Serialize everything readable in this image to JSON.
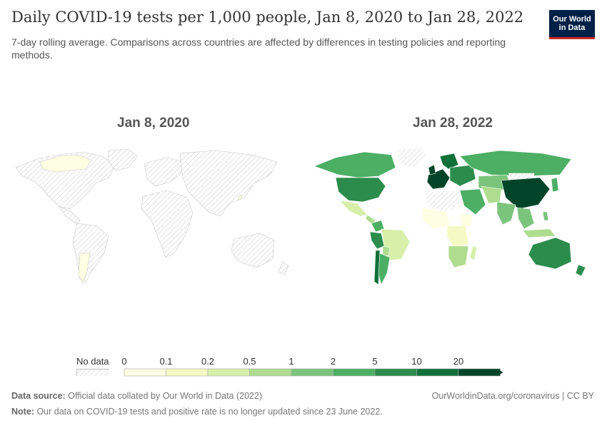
{
  "title": "Daily COVID-19 tests per 1,000 people, Jan 8, 2020 to Jan 28, 2022",
  "subtitle": "7-day rolling average. Comparisons across countries are affected by differences in testing policies and reporting methods.",
  "logo": {
    "line1": "Our World",
    "line2": "in Data",
    "bg_color": "#002147",
    "accent_color": "#ce261e"
  },
  "maps": {
    "left": {
      "date_label": "Jan 8, 2020"
    },
    "right": {
      "date_label": "Jan 28, 2022"
    }
  },
  "legend": {
    "no_data_label": "No data",
    "ticks": [
      "0",
      "0.1",
      "0.2",
      "0.5",
      "1",
      "2",
      "5",
      "10",
      "20"
    ],
    "colors": [
      "#fefee3",
      "#f5f9c4",
      "#d7efa8",
      "#aedd8f",
      "#7bc47c",
      "#4caf64",
      "#2c8c4c",
      "#12703a",
      "#004529"
    ]
  },
  "footer": {
    "source_label": "Data source:",
    "source_text": "Official data collated by Our World in Data (2022)",
    "note_label": "Note:",
    "note_text": "Our data on COVID-19 tests and positive rate is no longer updated since 23 June 2022.",
    "link_text": "OurWorldinData.org/coronavirus | CC BY"
  }
}
